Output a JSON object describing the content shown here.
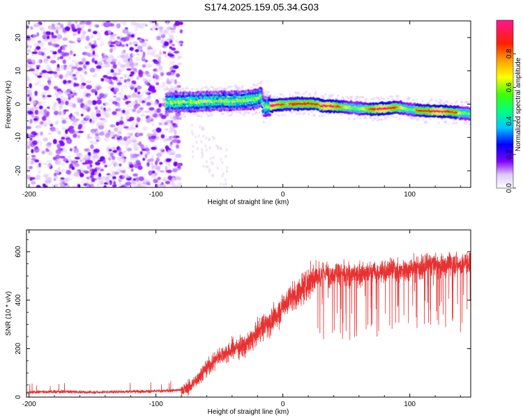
{
  "title": "S174.2025.159.05.34.G03",
  "chart_data": [
    {
      "type": "heatmap",
      "name": "spectrogram",
      "xlabel": "Height of straight line (km)",
      "ylabel": "Frequency (Hz)",
      "xlim": [
        -202,
        148
      ],
      "ylim": [
        -25,
        25
      ],
      "xticks": [
        -200,
        -100,
        0,
        100
      ],
      "yticks": [
        -20,
        -10,
        0,
        10,
        20
      ],
      "colorbar": {
        "label": "Normalized spectral amplitude",
        "range": [
          0,
          1
        ],
        "ticks": [
          "0.0",
          "0.2",
          "0.4",
          "0.6",
          "0.8"
        ]
      },
      "ridge": {
        "x": [
          -90,
          -80,
          -70,
          -60,
          -50,
          -40,
          -30,
          -20,
          -17,
          -15,
          -10,
          0,
          10,
          20,
          28,
          30,
          40,
          50,
          60,
          70,
          80,
          90,
          100,
          110,
          120,
          130,
          140,
          148
        ],
        "y": [
          0.5,
          0.6,
          0.7,
          0.9,
          1.0,
          1.0,
          1.2,
          1.6,
          2.5,
          -0.8,
          -0.5,
          0.0,
          0.1,
          0.2,
          0.0,
          -0.5,
          -0.6,
          -0.9,
          -1.3,
          -1.5,
          -1.3,
          -0.9,
          -1.5,
          -2.0,
          -2.1,
          -2.2,
          -2.6,
          -2.8
        ]
      }
    },
    {
      "type": "line",
      "name": "snr",
      "xlabel": "Height of straight line (km)",
      "ylabel": "SNR (10 * v/v)",
      "xlim": [
        -202,
        148
      ],
      "ylim": [
        0,
        690
      ],
      "xticks": [
        -200,
        -100,
        0,
        100
      ],
      "yticks": [
        0,
        200,
        400,
        600
      ],
      "color": "#e83232",
      "series": [
        {
          "x": [
            -202,
            -190,
            -170,
            -150,
            -130,
            -110,
            -95,
            -85,
            -78,
            -74,
            -70,
            -66,
            -62,
            -58,
            -54,
            -50,
            -46,
            -42,
            -38,
            -34,
            -30,
            -26,
            -22,
            -18,
            -14,
            -10,
            -6,
            -2,
            2,
            6,
            10,
            14,
            18,
            22,
            26,
            30,
            34,
            38,
            42,
            46,
            50,
            55,
            60,
            65,
            70,
            75,
            80,
            85,
            90,
            95,
            100,
            105,
            110,
            115,
            120,
            125,
            130,
            135,
            140,
            145,
            148
          ],
          "values": [
            18,
            22,
            22,
            20,
            22,
            24,
            25,
            28,
            30,
            40,
            60,
            85,
            110,
            130,
            150,
            170,
            180,
            190,
            205,
            205,
            210,
            230,
            250,
            280,
            300,
            310,
            330,
            360,
            390,
            410,
            420,
            440,
            460,
            480,
            500,
            510,
            515,
            505,
            520,
            515,
            500,
            510,
            505,
            510,
            520,
            510,
            520,
            530,
            520,
            525,
            530,
            540,
            530,
            550,
            550,
            540,
            555,
            550,
            545,
            560,
            555
          ]
        }
      ]
    }
  ]
}
